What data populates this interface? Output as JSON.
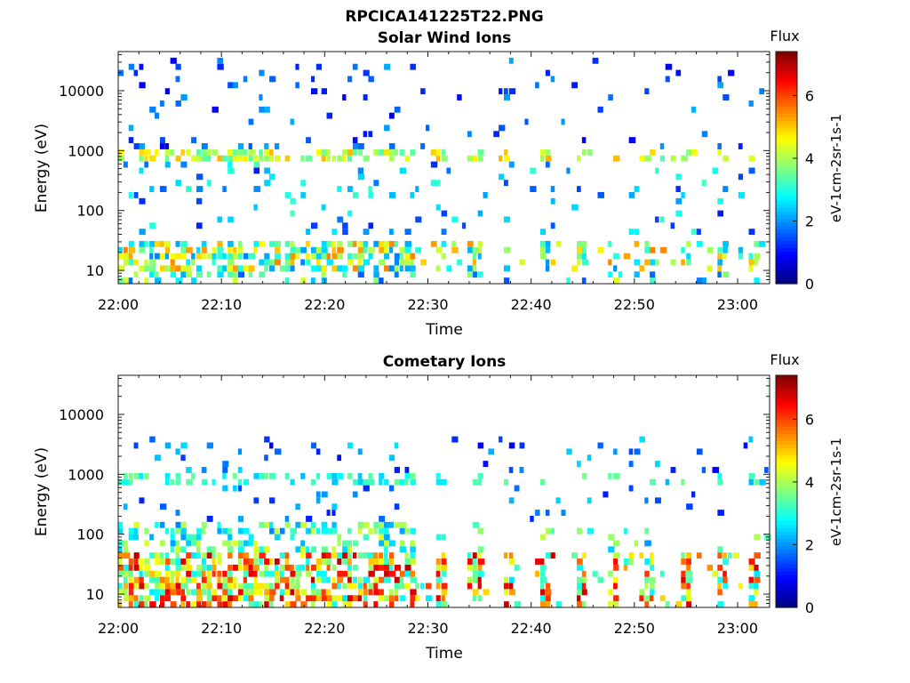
{
  "figure_title": "RPCICA141225T22.PNG",
  "chart_data": [
    {
      "type": "heatmap",
      "title": "Solar Wind Ions",
      "xlabel": "Time",
      "ylabel": "Energy (eV)",
      "y_scale": "log",
      "x_ticks": [
        "22:00",
        "22:10",
        "22:20",
        "22:30",
        "22:40",
        "22:50",
        "23:00"
      ],
      "y_ticks": [
        "10",
        "100",
        "1000",
        "10000"
      ],
      "colorbar": {
        "title": "Flux",
        "label": "eV-1cm-2sr-1s-1",
        "ticks": [
          "0",
          "2",
          "4",
          "6"
        ],
        "range": [
          0,
          7.4
        ],
        "colormap": "jet"
      },
      "grid": false,
      "profile": "solar"
    },
    {
      "type": "heatmap",
      "title": "Cometary Ions",
      "xlabel": "Time",
      "ylabel": "Energy (eV)",
      "y_scale": "log",
      "x_ticks": [
        "22:00",
        "22:10",
        "22:20",
        "22:30",
        "22:40",
        "22:50",
        "23:00"
      ],
      "y_ticks": [
        "10",
        "100",
        "1000",
        "10000"
      ],
      "colorbar": {
        "title": "Flux",
        "label": "eV-1cm-2sr-1s-1",
        "ticks": [
          "0",
          "2",
          "4",
          "6"
        ],
        "range": [
          0,
          7.4
        ],
        "colormap": "jet"
      },
      "grid": false,
      "profile": "cometary"
    }
  ]
}
